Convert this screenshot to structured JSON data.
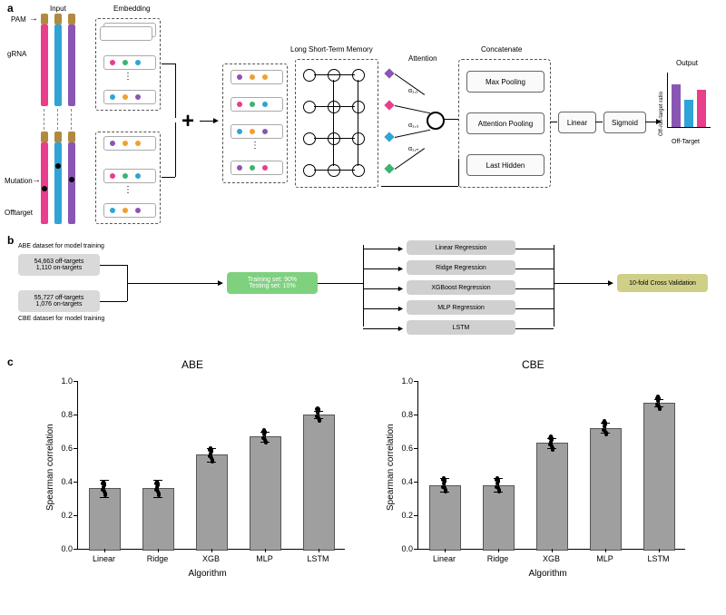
{
  "panel_labels": {
    "a": "a",
    "b": "b",
    "c": "c"
  },
  "panel_a": {
    "labels": {
      "input": "Input",
      "pam": "PAM",
      "grna": "gRNA",
      "mutation": "Mutation",
      "offtarget": "Offtarget",
      "embedding": "Embedding",
      "lstm": "Long Short-Term Memory",
      "attention": "Attention",
      "concat": "Concatenate",
      "pool_max": "Max Pooling",
      "pool_attn": "Attention Pooling",
      "pool_last": "Last Hidden",
      "linear": "Linear",
      "sigmoid": "Sigmoid",
      "output_title": "Output",
      "output_y": "Off-/on-target ratio",
      "output_x": "Off-Target",
      "alpha1": "α₁,₁",
      "alpha3": "α₁,₃",
      "alphan": "α₁,ₙ"
    },
    "colors": {
      "seq1": "#e83e8c",
      "seq2": "#2fa4d6",
      "seq3": "#8a56b3",
      "pam": "#b08a3e",
      "emb_dots": [
        "#8a56b3",
        "#f0a030",
        "#e83e8c",
        "#2fa4d6",
        "#3cb371"
      ],
      "diamond": [
        "#8a56b3",
        "#e83e8c",
        "#2fa4d6",
        "#3cb371"
      ],
      "out_bars": [
        "#8a56b3",
        "#2fa4d6",
        "#e83e8c"
      ]
    },
    "output_bars": [
      0.85,
      0.55,
      0.75
    ]
  },
  "panel_b": {
    "labels": {
      "abe_title": "ABE dataset for model training",
      "cbe_title": "CBE dataset for model training",
      "abe_box": "54,663 off-targets\n1,110 on-targets",
      "cbe_box": "55,727 off-targets\n1,076 on-targets",
      "train": "Training set: 90%\nTesting set: 10%",
      "models": [
        "Linear Regression",
        "Ridge Regression",
        "XGBoost Regression",
        "MLP Regression",
        "LSTM"
      ],
      "cv": "10-fold Cross Validation"
    },
    "colors": {
      "data_box": "#d9d9d9",
      "train_box": "#7fd17f",
      "model_box": "#d0d0d0",
      "cv_box": "#cfcf88"
    }
  },
  "panel_c": {
    "titles": {
      "left": "ABE",
      "right": "CBE"
    },
    "y_label": "Spearman correlation",
    "x_label": "Algorithm",
    "categories": [
      "Linear",
      "Ridge",
      "XGB",
      "MLP",
      "LSTM"
    ],
    "ylim": [
      0.0,
      1.0
    ],
    "yticks": [
      0.0,
      0.2,
      0.4,
      0.6,
      0.8,
      1.0
    ],
    "bar_color": "#9f9f9f",
    "left_values": [
      0.36,
      0.36,
      0.56,
      0.67,
      0.8
    ],
    "left_err": [
      0.05,
      0.05,
      0.04,
      0.03,
      0.02
    ],
    "right_values": [
      0.38,
      0.38,
      0.63,
      0.72,
      0.87
    ],
    "right_err": [
      0.04,
      0.04,
      0.03,
      0.03,
      0.02
    ],
    "scatter_jitter": [
      [
        -0.04,
        0.03
      ],
      [
        0.02,
        -0.02
      ],
      [
        -0.01,
        0.04
      ],
      [
        0.03,
        -0.03
      ],
      [
        -0.02,
        0.01
      ],
      [
        0.01,
        0.02
      ],
      [
        0.04,
        -0.04
      ],
      [
        -0.03,
        -0.01
      ],
      [
        0.0,
        0.03
      ],
      [
        0.02,
        -0.02
      ]
    ]
  }
}
